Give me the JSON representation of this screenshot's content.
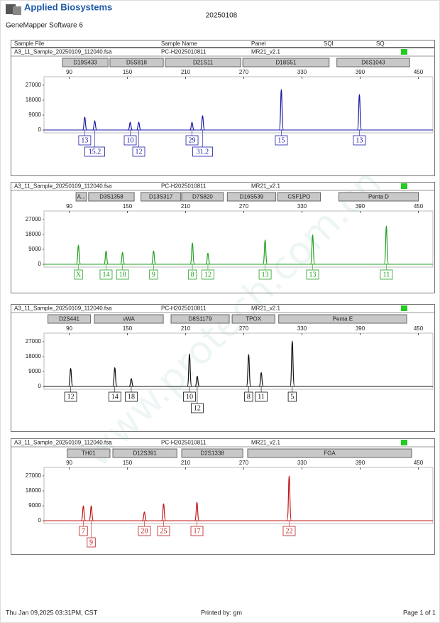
{
  "header": {
    "brand": "Applied Biosystems",
    "software": "GeneMapper Software 6",
    "title": "20250108"
  },
  "table_header": [
    "Sample File",
    "Sample Name",
    "Panel",
    "SQI",
    "SQ"
  ],
  "watermark": "www.protech.com.cn",
  "chart_data": [
    {
      "type": "electropherogram",
      "sample_file": "A3_11_Sample_20250109_112040.fsa",
      "sample_name": "PC-H2025010811",
      "panel": "MR21_v2.1",
      "color": "#1a1aa6",
      "xlim": [
        64,
        465
      ],
      "xticks": [
        90,
        150,
        210,
        270,
        330,
        390,
        450
      ],
      "ylim": [
        -1700,
        32100
      ],
      "yticks": [
        0,
        9000,
        18000,
        27000
      ],
      "markers": [
        {
          "name": "D19S433",
          "range": [
            83,
            130
          ]
        },
        {
          "name": "D5S818",
          "range": [
            132,
            187
          ]
        },
        {
          "name": "D21S11",
          "range": [
            189,
            267
          ]
        },
        {
          "name": "D18S51",
          "range": [
            269,
            358
          ]
        },
        {
          "name": "D6S1043",
          "range": [
            366,
            441
          ]
        }
      ],
      "x": [
        106,
        116.3,
        152.9,
        161.7,
        216.6,
        227.5,
        308.7,
        389.2
      ],
      "values": [
        7700,
        5600,
        4700,
        4700,
        4700,
        8600,
        24400,
        21400
      ],
      "allele_labels": [
        "13",
        "15.2",
        "10",
        "12",
        "29",
        "31.2",
        "15",
        "13"
      ]
    },
    {
      "type": "electropherogram",
      "sample_file": "A3_11_Sample_20250109_112040.fsa",
      "sample_name": "PC-H2025010811",
      "panel": "MR21_v2.1",
      "color": "#22a022",
      "xlim": [
        64,
        465
      ],
      "xticks": [
        90,
        150,
        210,
        270,
        330,
        390,
        450
      ],
      "ylim": [
        -1700,
        32100
      ],
      "yticks": [
        0,
        9000,
        18000,
        27000
      ],
      "markers": [
        {
          "name": "A...",
          "range": [
            97,
            108
          ]
        },
        {
          "name": "D3S1358",
          "range": [
            110,
            157
          ]
        },
        {
          "name": "D13S317",
          "range": [
            164,
            205
          ]
        },
        {
          "name": "D7S820",
          "range": [
            206,
            249
          ]
        },
        {
          "name": "D16S539",
          "range": [
            253,
            303
          ]
        },
        {
          "name": "CSF1PO",
          "range": [
            305,
            349
          ]
        },
        {
          "name": "Penta D",
          "range": [
            368,
            450
          ]
        }
      ],
      "x": [
        99.5,
        128,
        145,
        177,
        217,
        233,
        292,
        341,
        417
      ],
      "values": [
        11500,
        8000,
        7100,
        8000,
        12800,
        6600,
        14600,
        17700,
        23000
      ],
      "allele_labels": [
        "X",
        "14",
        "18",
        "9",
        "8",
        "12",
        "13",
        "13",
        "11"
      ]
    },
    {
      "type": "electropherogram",
      "sample_file": "A3_11_Sample_20250109_112040.fsa",
      "sample_name": "PC-H2025010811",
      "panel": "MR21_v2.1",
      "color": "#111111",
      "xlim": [
        64,
        465
      ],
      "xticks": [
        90,
        150,
        210,
        270,
        330,
        390,
        450
      ],
      "ylim": [
        -1700,
        32100
      ],
      "yticks": [
        0,
        9000,
        18000,
        27000
      ],
      "markers": [
        {
          "name": "D2S441",
          "range": [
            68,
            112
          ]
        },
        {
          "name": "vWA",
          "range": [
            116,
            187
          ]
        },
        {
          "name": "D8S1179",
          "range": [
            195,
            255
          ]
        },
        {
          "name": "TPOX",
          "range": [
            258,
            302
          ]
        },
        {
          "name": "Penta E",
          "range": [
            306,
            438
          ]
        }
      ],
      "x": [
        91.5,
        137,
        154,
        214,
        222,
        275,
        288,
        320
      ],
      "values": [
        10900,
        11300,
        4800,
        19600,
        6100,
        19200,
        8300,
        27400
      ],
      "allele_labels": [
        "12",
        "14",
        "18",
        "10",
        "12",
        "8",
        "11",
        "5"
      ]
    },
    {
      "type": "electropherogram",
      "sample_file": "A3_11_Sample_20250109_112040.fsa",
      "sample_name": "PC-H2025010811",
      "panel": "MR21_v2.1",
      "color": "#c01818",
      "xlim": [
        64,
        465
      ],
      "xticks": [
        90,
        150,
        210,
        270,
        330,
        390,
        450
      ],
      "ylim": [
        -1700,
        32100
      ],
      "yticks": [
        0,
        9000,
        18000,
        27000
      ],
      "markers": [
        {
          "name": "TH01",
          "range": [
            88,
            132
          ]
        },
        {
          "name": "D12S391",
          "range": [
            135,
            201
          ]
        },
        {
          "name": "D2S1338",
          "range": [
            206,
            269
          ]
        },
        {
          "name": "FGA",
          "range": [
            274,
            443
          ]
        }
      ],
      "x": [
        104.6,
        112.7,
        167.5,
        187.3,
        221.7,
        316.8
      ],
      "values": [
        8900,
        8900,
        5300,
        10200,
        11100,
        27000
      ],
      "allele_labels": [
        "7",
        "9",
        "20",
        "25",
        "17",
        "22"
      ]
    }
  ],
  "footer": {
    "printed_at": "Thu Jan 09,2025 03:31PM, CST",
    "printed_by": "Printed by: gm",
    "page": "Page 1 of 1"
  }
}
